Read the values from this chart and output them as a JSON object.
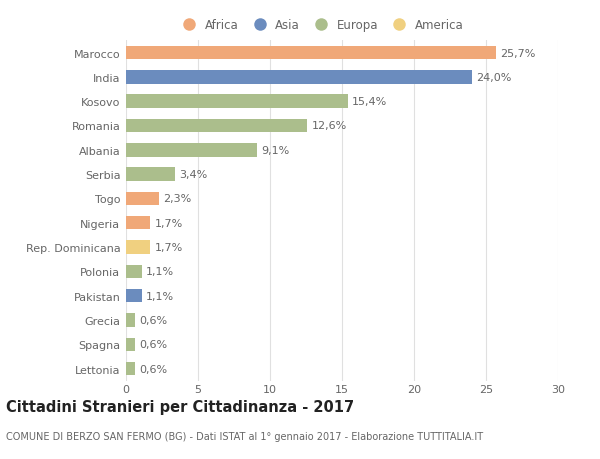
{
  "countries": [
    "Marocco",
    "India",
    "Kosovo",
    "Romania",
    "Albania",
    "Serbia",
    "Togo",
    "Nigeria",
    "Rep. Dominicana",
    "Polonia",
    "Pakistan",
    "Grecia",
    "Spagna",
    "Lettonia"
  ],
  "values": [
    25.7,
    24.0,
    15.4,
    12.6,
    9.1,
    3.4,
    2.3,
    1.7,
    1.7,
    1.1,
    1.1,
    0.6,
    0.6,
    0.6
  ],
  "labels": [
    "25,7%",
    "24,0%",
    "15,4%",
    "12,6%",
    "9,1%",
    "3,4%",
    "2,3%",
    "1,7%",
    "1,7%",
    "1,1%",
    "1,1%",
    "0,6%",
    "0,6%",
    "0,6%"
  ],
  "continents": [
    "Africa",
    "Asia",
    "Europa",
    "Europa",
    "Europa",
    "Europa",
    "Africa",
    "Africa",
    "America",
    "Europa",
    "Asia",
    "Europa",
    "Europa",
    "Europa"
  ],
  "colors": {
    "Africa": "#F0A878",
    "Asia": "#6B8CBE",
    "Europa": "#ABBE8C",
    "America": "#F0D080"
  },
  "legend_order": [
    "Africa",
    "Asia",
    "Europa",
    "America"
  ],
  "title": "Cittadini Stranieri per Cittadinanza - 2017",
  "subtitle": "COMUNE DI BERZO SAN FERMO (BG) - Dati ISTAT al 1° gennaio 2017 - Elaborazione TUTTITALIA.IT",
  "xlim": [
    0,
    30
  ],
  "xticks": [
    0,
    5,
    10,
    15,
    20,
    25,
    30
  ],
  "background_color": "#ffffff",
  "grid_color": "#e0e0e0",
  "bar_height": 0.55,
  "label_fontsize": 8,
  "tick_fontsize": 8,
  "ytick_fontsize": 8,
  "title_fontsize": 10.5,
  "subtitle_fontsize": 7
}
